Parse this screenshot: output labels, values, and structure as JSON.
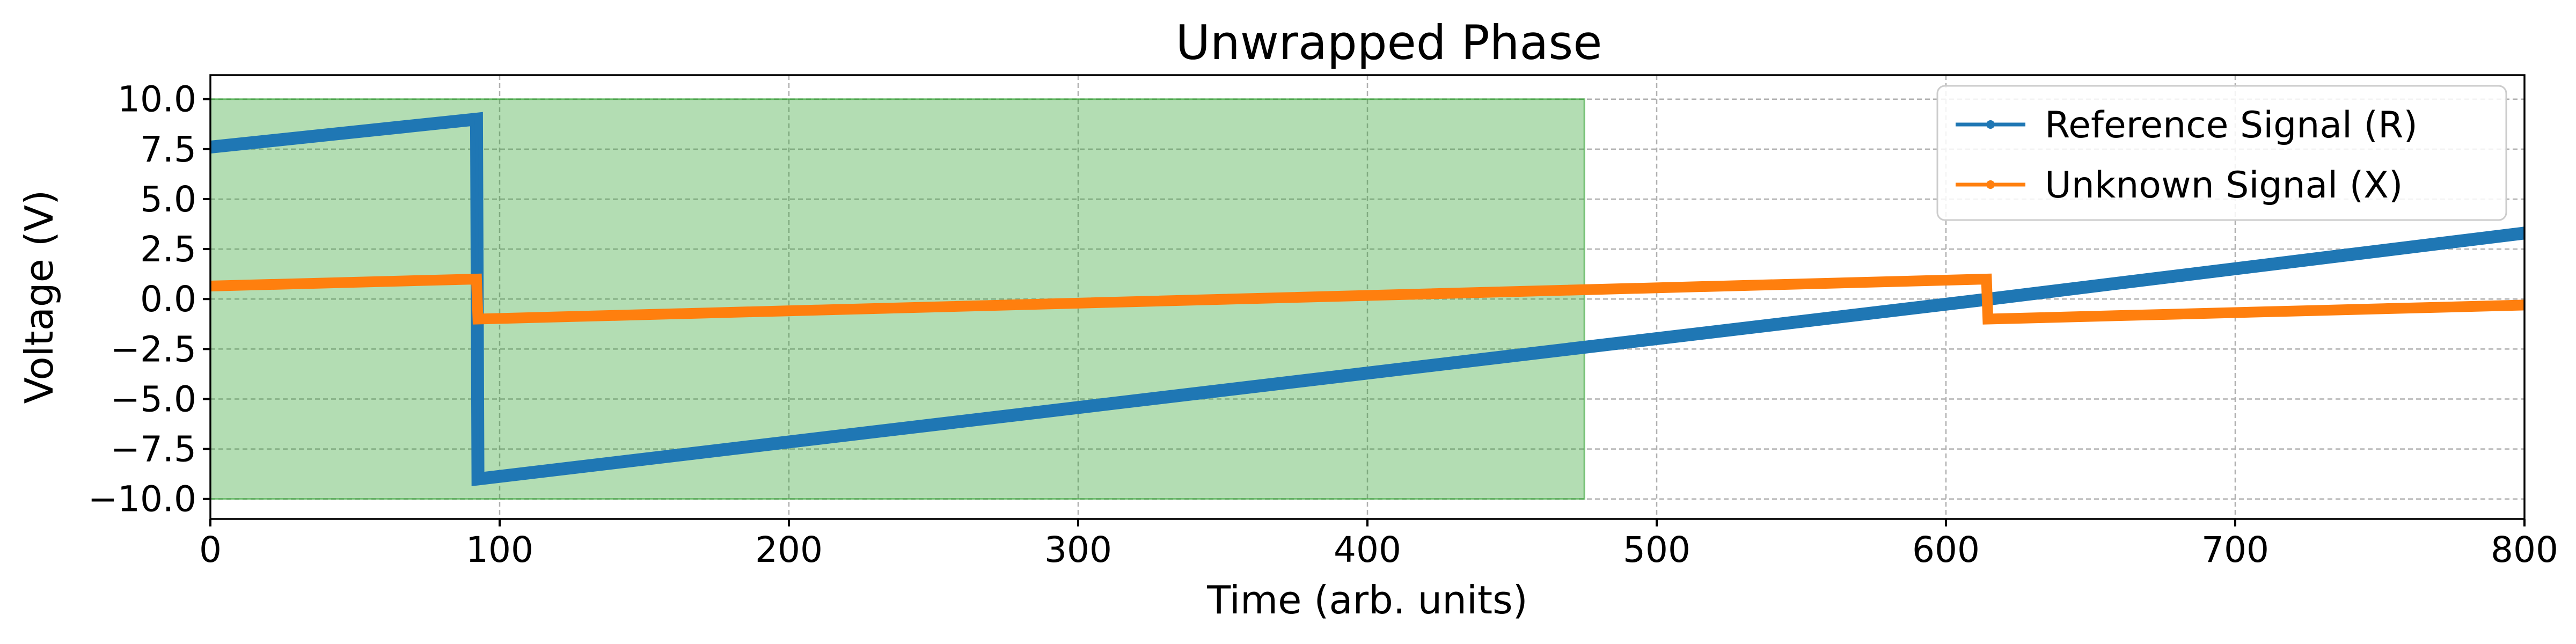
{
  "chart_data": {
    "type": "line",
    "title": "Unwrapped Phase",
    "xlabel": "Time (arb. units)",
    "ylabel": "Voltage (V)",
    "xlim": [
      0,
      800
    ],
    "ylim": [
      -11,
      11.2
    ],
    "xticks": [
      0,
      100,
      200,
      300,
      400,
      500,
      600,
      700,
      800
    ],
    "yticks": [
      10.0,
      7.5,
      5.0,
      2.5,
      0.0,
      -2.5,
      -5.0,
      -7.5,
      -10.0
    ],
    "xtick_labels": [
      "0",
      "100",
      "200",
      "300",
      "400",
      "500",
      "600",
      "700",
      "800"
    ],
    "ytick_labels": [
      "10.0",
      "7.5",
      "5.0",
      "2.5",
      "0.0",
      "−2.5",
      "−5.0",
      "−7.5",
      "−10.0"
    ],
    "grid": true,
    "legend_position": "top-right",
    "highlight_region": {
      "x_range": [
        0,
        475
      ],
      "y_range": [
        -10,
        10
      ],
      "color": "#2ca02c",
      "opacity": 0.36
    },
    "series": [
      {
        "name": "Reference Signal (R)",
        "color": "#1f77b4",
        "x": [
          0,
          92,
          92.5,
          615,
          800
        ],
        "y": [
          7.6,
          9.0,
          -9.0,
          0.0,
          3.3
        ]
      },
      {
        "name": "Unknown Signal (X)",
        "color": "#ff7f0e",
        "x": [
          0,
          92,
          92.5,
          614,
          614.5,
          800
        ],
        "y": [
          0.65,
          1.0,
          -1.0,
          1.0,
          -1.0,
          -0.3
        ]
      }
    ]
  }
}
